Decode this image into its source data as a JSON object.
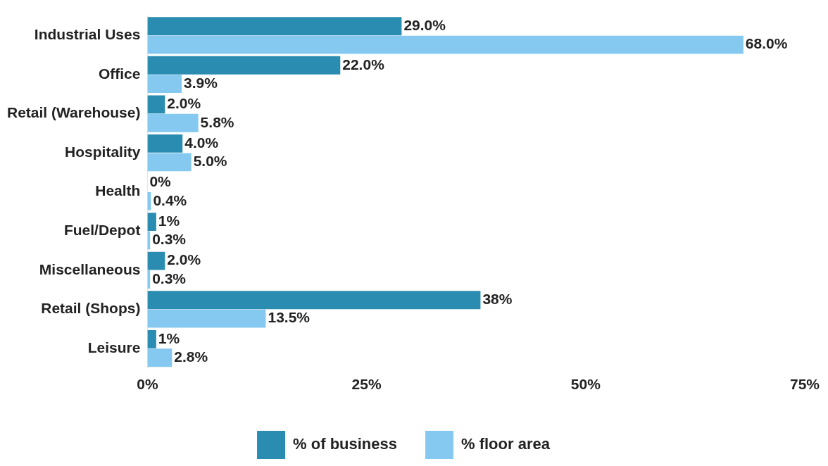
{
  "chart_data": {
    "type": "bar",
    "orientation": "horizontal",
    "categories": [
      "Industrial Uses",
      "Office",
      "Retail (Warehouse)",
      "Hospitality",
      "Health",
      "Fuel/Depot",
      "Miscellaneous",
      "Retail (Shops)",
      "Leisure"
    ],
    "series": [
      {
        "name": "% of business",
        "color": "#2a8cb0",
        "values": [
          29.0,
          22.0,
          2.0,
          4.0,
          0,
          1,
          2.0,
          38,
          1
        ],
        "value_labels": [
          "29.0%",
          "22.0%",
          "2.0%",
          "4.0%",
          "0%",
          "1%",
          "2.0%",
          "38%",
          "1%"
        ]
      },
      {
        "name": "% floor area",
        "color": "#85c9f0",
        "values": [
          68.0,
          3.9,
          5.8,
          5.0,
          0.4,
          0.3,
          0.3,
          13.5,
          2.8
        ],
        "value_labels": [
          "68.0%",
          "3.9%",
          "5.8%",
          "5.0%",
          "0.4%",
          "0.3%",
          "0.3%",
          "13.5%",
          "2.8%"
        ]
      }
    ],
    "xlim": [
      0,
      75
    ],
    "xticks": [
      {
        "value": 0,
        "label": "0%"
      },
      {
        "value": 25,
        "label": "25%"
      },
      {
        "value": 50,
        "label": "50%"
      },
      {
        "value": 75,
        "label": "75%"
      }
    ],
    "grid": false,
    "legend": "bottom"
  }
}
